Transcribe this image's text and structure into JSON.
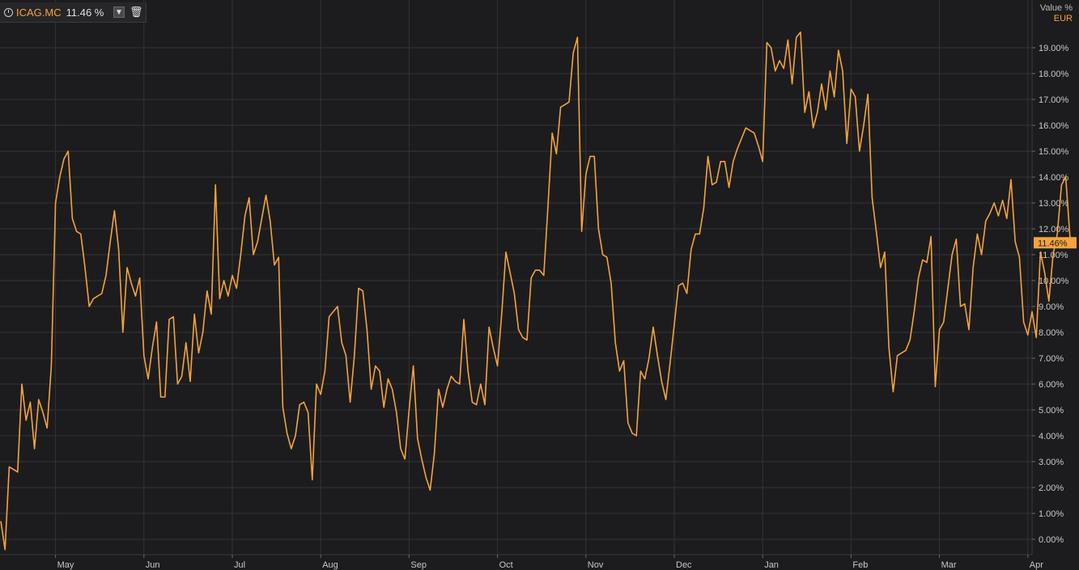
{
  "legend": {
    "ric": "ICAG.MC",
    "value": "11.46 %",
    "dropdown_icon": "chevron-down-icon",
    "delete_icon": "trash-icon",
    "clock_icon": "clock-icon"
  },
  "axis": {
    "title": "Value %",
    "currency": "EUR"
  },
  "colors": {
    "line": "#f5a33c",
    "background": "#1c1c1e",
    "grid": "#333336",
    "current_label_bg": "#f5a33c"
  },
  "chart_data": {
    "type": "line",
    "title": "",
    "xlabel": "",
    "ylabel": "Value %",
    "ylim": [
      -0.5,
      20.0
    ],
    "y_ticks": [
      "0.00%",
      "1.00%",
      "2.00%",
      "3.00%",
      "4.00%",
      "5.00%",
      "6.00%",
      "7.00%",
      "8.00%",
      "9.00%",
      "10.00%",
      "11.00%",
      "12.00%",
      "13.00%",
      "14.00%",
      "15.00%",
      "16.00%",
      "17.00%",
      "18.00%",
      "19.00%"
    ],
    "x_ticks": [
      {
        "label": "May",
        "index": 13
      },
      {
        "label": "Jun",
        "index": 34
      },
      {
        "label": "Jul",
        "index": 55
      },
      {
        "label": "Aug",
        "index": 76
      },
      {
        "label": "Sep",
        "index": 97
      },
      {
        "label": "Oct",
        "index": 118
      },
      {
        "label": "Nov",
        "index": 139
      },
      {
        "label": "Dec",
        "index": 160
      },
      {
        "label": "Jan",
        "index": 181
      },
      {
        "label": "Feb",
        "index": 202
      },
      {
        "label": "Mar",
        "index": 223
      },
      {
        "label": "Apr",
        "index": 244
      }
    ],
    "last_value_label": "11.46%",
    "series": [
      {
        "values": [
          0.7,
          -0.4,
          2.8,
          2.7,
          2.6,
          6.0,
          4.6,
          5.3,
          3.5,
          5.4,
          4.9,
          4.3,
          6.7,
          13.0,
          14.0,
          14.7,
          15.0,
          12.4,
          11.9,
          11.8,
          10.5,
          9.0,
          9.3,
          9.4,
          9.5,
          10.2,
          11.5,
          12.7,
          11.2,
          8.0,
          10.5,
          9.9,
          9.4,
          10.1,
          7.1,
          6.2,
          7.4,
          8.4,
          5.5,
          5.5,
          8.5,
          8.6,
          6.0,
          6.3,
          7.6,
          6.1,
          8.7,
          7.2,
          8.0,
          9.6,
          8.7,
          13.7,
          9.3,
          10.0,
          9.4,
          10.2,
          9.7,
          11.0,
          12.5,
          13.2,
          11.0,
          11.5,
          12.4,
          13.3,
          12.3,
          10.6,
          10.9,
          5.1,
          4.1,
          3.5,
          4.0,
          5.2,
          5.3,
          4.9,
          2.3,
          6.0,
          5.6,
          6.5,
          8.6,
          8.8,
          9.0,
          7.6,
          7.1,
          5.3,
          7.1,
          9.7,
          9.6,
          8.1,
          5.8,
          6.7,
          6.5,
          5.1,
          6.2,
          5.8,
          4.9,
          3.5,
          3.1,
          5.0,
          6.7,
          3.9,
          3.1,
          2.4,
          1.9,
          3.3,
          5.8,
          5.1,
          5.8,
          6.3,
          6.1,
          6.0,
          8.5,
          6.5,
          5.3,
          5.2,
          6.0,
          5.2,
          8.2,
          7.4,
          6.7,
          8.7,
          11.1,
          10.3,
          9.5,
          8.1,
          7.8,
          7.7,
          10.1,
          10.4,
          10.4,
          10.2,
          12.9,
          15.7,
          14.9,
          16.7,
          16.8,
          16.9,
          18.8,
          19.4,
          11.9,
          14.1,
          14.8,
          14.8,
          12.0,
          11.0,
          10.9,
          9.9,
          7.6,
          6.5,
          6.9,
          4.5,
          4.1,
          4.0,
          6.5,
          6.2,
          7.0,
          8.2,
          7.1,
          6.1,
          5.4,
          6.8,
          8.3,
          9.8,
          9.9,
          9.5,
          11.2,
          11.8,
          11.8,
          12.8,
          14.8,
          13.7,
          13.8,
          14.6,
          14.6,
          13.6,
          14.6,
          15.1,
          15.5,
          15.9,
          15.8,
          15.7,
          15.2,
          14.6,
          19.2,
          19.0,
          18.1,
          18.5,
          18.2,
          19.3,
          17.6,
          19.4,
          19.6,
          16.5,
          17.3,
          15.9,
          16.5,
          17.6,
          16.6,
          18.1,
          17.1,
          18.9,
          18.1,
          15.3,
          17.4,
          17.1,
          15.0,
          16.0,
          17.2,
          13.2,
          11.9,
          10.5,
          11.1,
          7.4,
          5.7,
          7.1,
          7.2,
          7.3,
          7.7,
          8.8,
          10.1,
          10.8,
          10.7,
          11.7,
          5.9,
          8.1,
          8.4,
          9.7,
          11.0,
          11.6,
          9.0,
          9.1,
          8.1,
          10.5,
          11.8,
          11.0,
          12.3,
          12.6,
          13.0,
          12.5,
          13.1,
          12.4,
          13.9,
          11.5,
          10.9,
          8.4,
          7.9,
          8.8,
          7.8,
          11.1,
          10.3,
          9.2,
          11.0,
          11.8,
          13.7,
          14.0,
          11.7,
          11.46
        ]
      }
    ]
  }
}
